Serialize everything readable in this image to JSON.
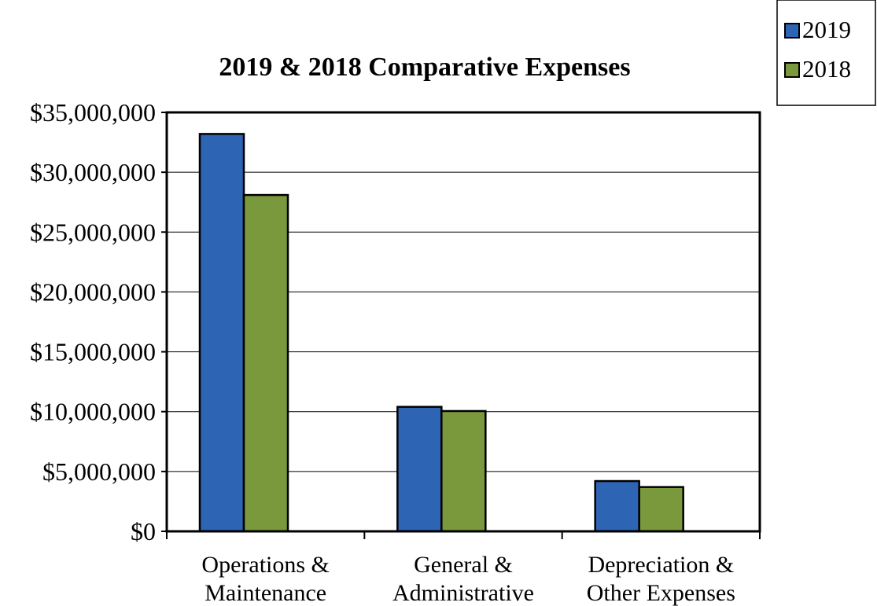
{
  "chart_data": {
    "type": "bar",
    "title": "2019 & 2018 Comparative Expenses",
    "xlabel": "",
    "ylabel": "",
    "categories": [
      [
        "Operations &",
        "Maintenance"
      ],
      [
        "General &",
        "Administrative"
      ],
      [
        "Depreciation &",
        "Other Expenses"
      ]
    ],
    "series": [
      {
        "name": "2019",
        "color": "#2e64b4",
        "values": [
          33200000,
          10400000,
          4200000
        ]
      },
      {
        "name": "2018",
        "color": "#7a983c",
        "values": [
          28100000,
          10050000,
          3700000
        ]
      }
    ],
    "ylim": [
      0,
      35000000
    ],
    "yticks": [
      0,
      5000000,
      10000000,
      15000000,
      20000000,
      25000000,
      30000000,
      35000000
    ],
    "ytick_labels": [
      "$0",
      "$5,000,000",
      "$10,000,000",
      "$15,000,000",
      "$20,000,000",
      "$25,000,000",
      "$30,000,000",
      "$35,000,000"
    ],
    "grid": true,
    "legend_position": "top-right"
  }
}
